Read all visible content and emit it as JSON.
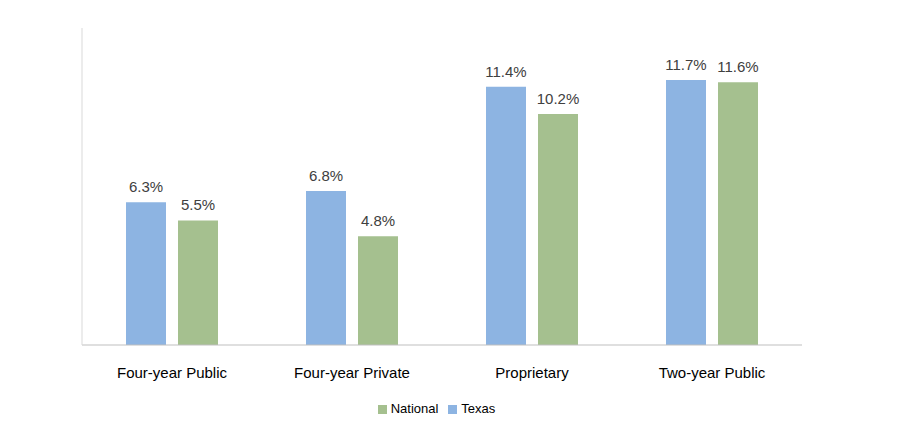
{
  "chart_data": {
    "type": "bar",
    "categories": [
      "Four-year Public",
      "Four-year Private",
      "Proprietary",
      "Two-year Public"
    ],
    "series": [
      {
        "name": "Texas",
        "color": "#8db4e2",
        "values": [
          6.3,
          6.8,
          11.4,
          11.7
        ],
        "value_labels": [
          "6.3%",
          "6.8%",
          "11.4%",
          "11.7%"
        ]
      },
      {
        "name": "National",
        "color": "#a5c08f",
        "values": [
          5.5,
          4.8,
          10.2,
          11.6
        ],
        "value_labels": [
          "5.5%",
          "4.8%",
          "10.2%",
          "11.6%"
        ]
      }
    ],
    "ylim": [
      0,
      14
    ],
    "tick_labels": "x",
    "data_labels": true,
    "grid": false,
    "legend": "bottom"
  }
}
